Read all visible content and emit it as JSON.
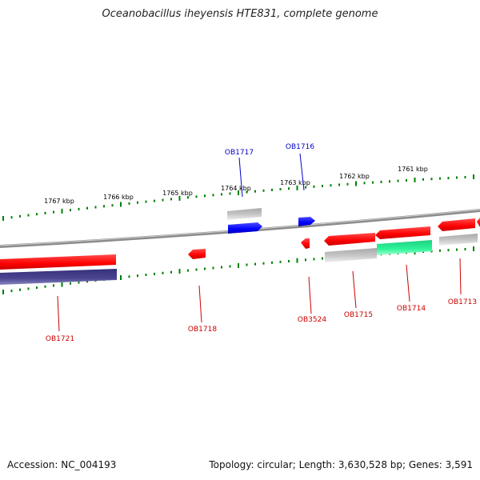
{
  "title": "Oceanobacillus iheyensis HTE831, complete genome",
  "footer": {
    "accession": "Accession: NC_004193",
    "topology": "Topology: circular; Length: 3,630,528 bp; Genes: 3,591"
  },
  "ruler": {
    "labels": [
      "1767 kbp",
      "1766 kbp",
      "1765 kbp",
      "1764 kbp",
      "1763 kbp",
      "1762 kbp",
      "1761 kbp"
    ]
  },
  "genes": [
    {
      "name": "OB1717",
      "strand": "forward",
      "color": "#0000cc"
    },
    {
      "name": "OB1716",
      "strand": "forward",
      "color": "#0000cc"
    },
    {
      "name": "OB1721",
      "strand": "reverse",
      "color": "#cc0000"
    },
    {
      "name": "OB1718",
      "strand": "reverse",
      "color": "#cc0000"
    },
    {
      "name": "OB3524",
      "strand": "reverse",
      "color": "#cc0000"
    },
    {
      "name": "OB1715",
      "strand": "reverse",
      "color": "#cc0000"
    },
    {
      "name": "OB1714",
      "strand": "reverse",
      "color": "#cc0000"
    },
    {
      "name": "OB1713",
      "strand": "reverse",
      "color": "#cc0000"
    }
  ],
  "colors": {
    "forward_gene": "#0000ff",
    "reverse_gene": "#ff0000",
    "pseudo_gene": "#b5b5b5",
    "rna_gene": "#22e38c",
    "operon": "#3e3a84",
    "tick": "#008000",
    "backbone": "#8c8c8c"
  }
}
